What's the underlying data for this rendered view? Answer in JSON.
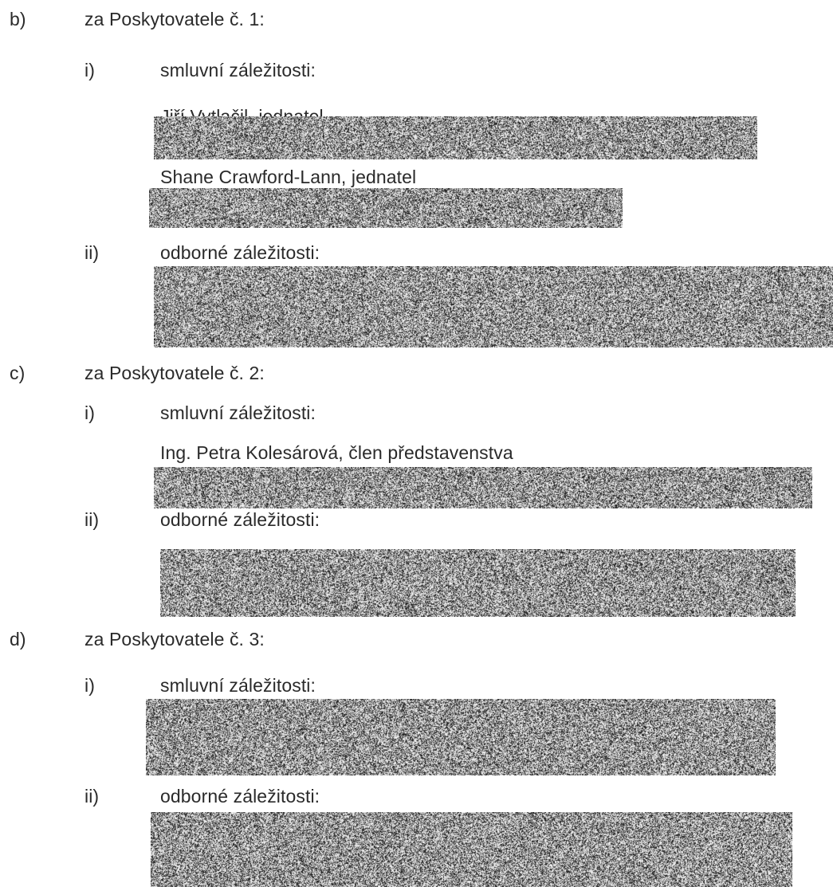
{
  "sections": [
    {
      "marker": "b)",
      "title": "za Poskytovatele č. 1:",
      "items": [
        {
          "marker": "i)",
          "label": "smluvní záležitosti:",
          "entries": [
            "Jiří Vytlačil, jednatel",
            "Shane Crawford-Lann, jednatel"
          ]
        },
        {
          "marker": "ii)",
          "label": "odborné záležitosti:",
          "entries": []
        }
      ]
    },
    {
      "marker": "c)",
      "title": "za Poskytovatele č. 2:",
      "items": [
        {
          "marker": "i)",
          "label": "smluvní záležitosti:",
          "entries": [
            "Ing. Petra Kolesárová, člen představenstva"
          ]
        },
        {
          "marker": "ii)",
          "label": "odborné záležitosti:",
          "entries": []
        }
      ]
    },
    {
      "marker": "d)",
      "title": "za Poskytovatele č. 3:",
      "items": [
        {
          "marker": "i)",
          "label": "smluvní záležitosti:",
          "entries": []
        },
        {
          "marker": "ii)",
          "label": "odborné záležitosti:",
          "entries": []
        }
      ]
    }
  ]
}
